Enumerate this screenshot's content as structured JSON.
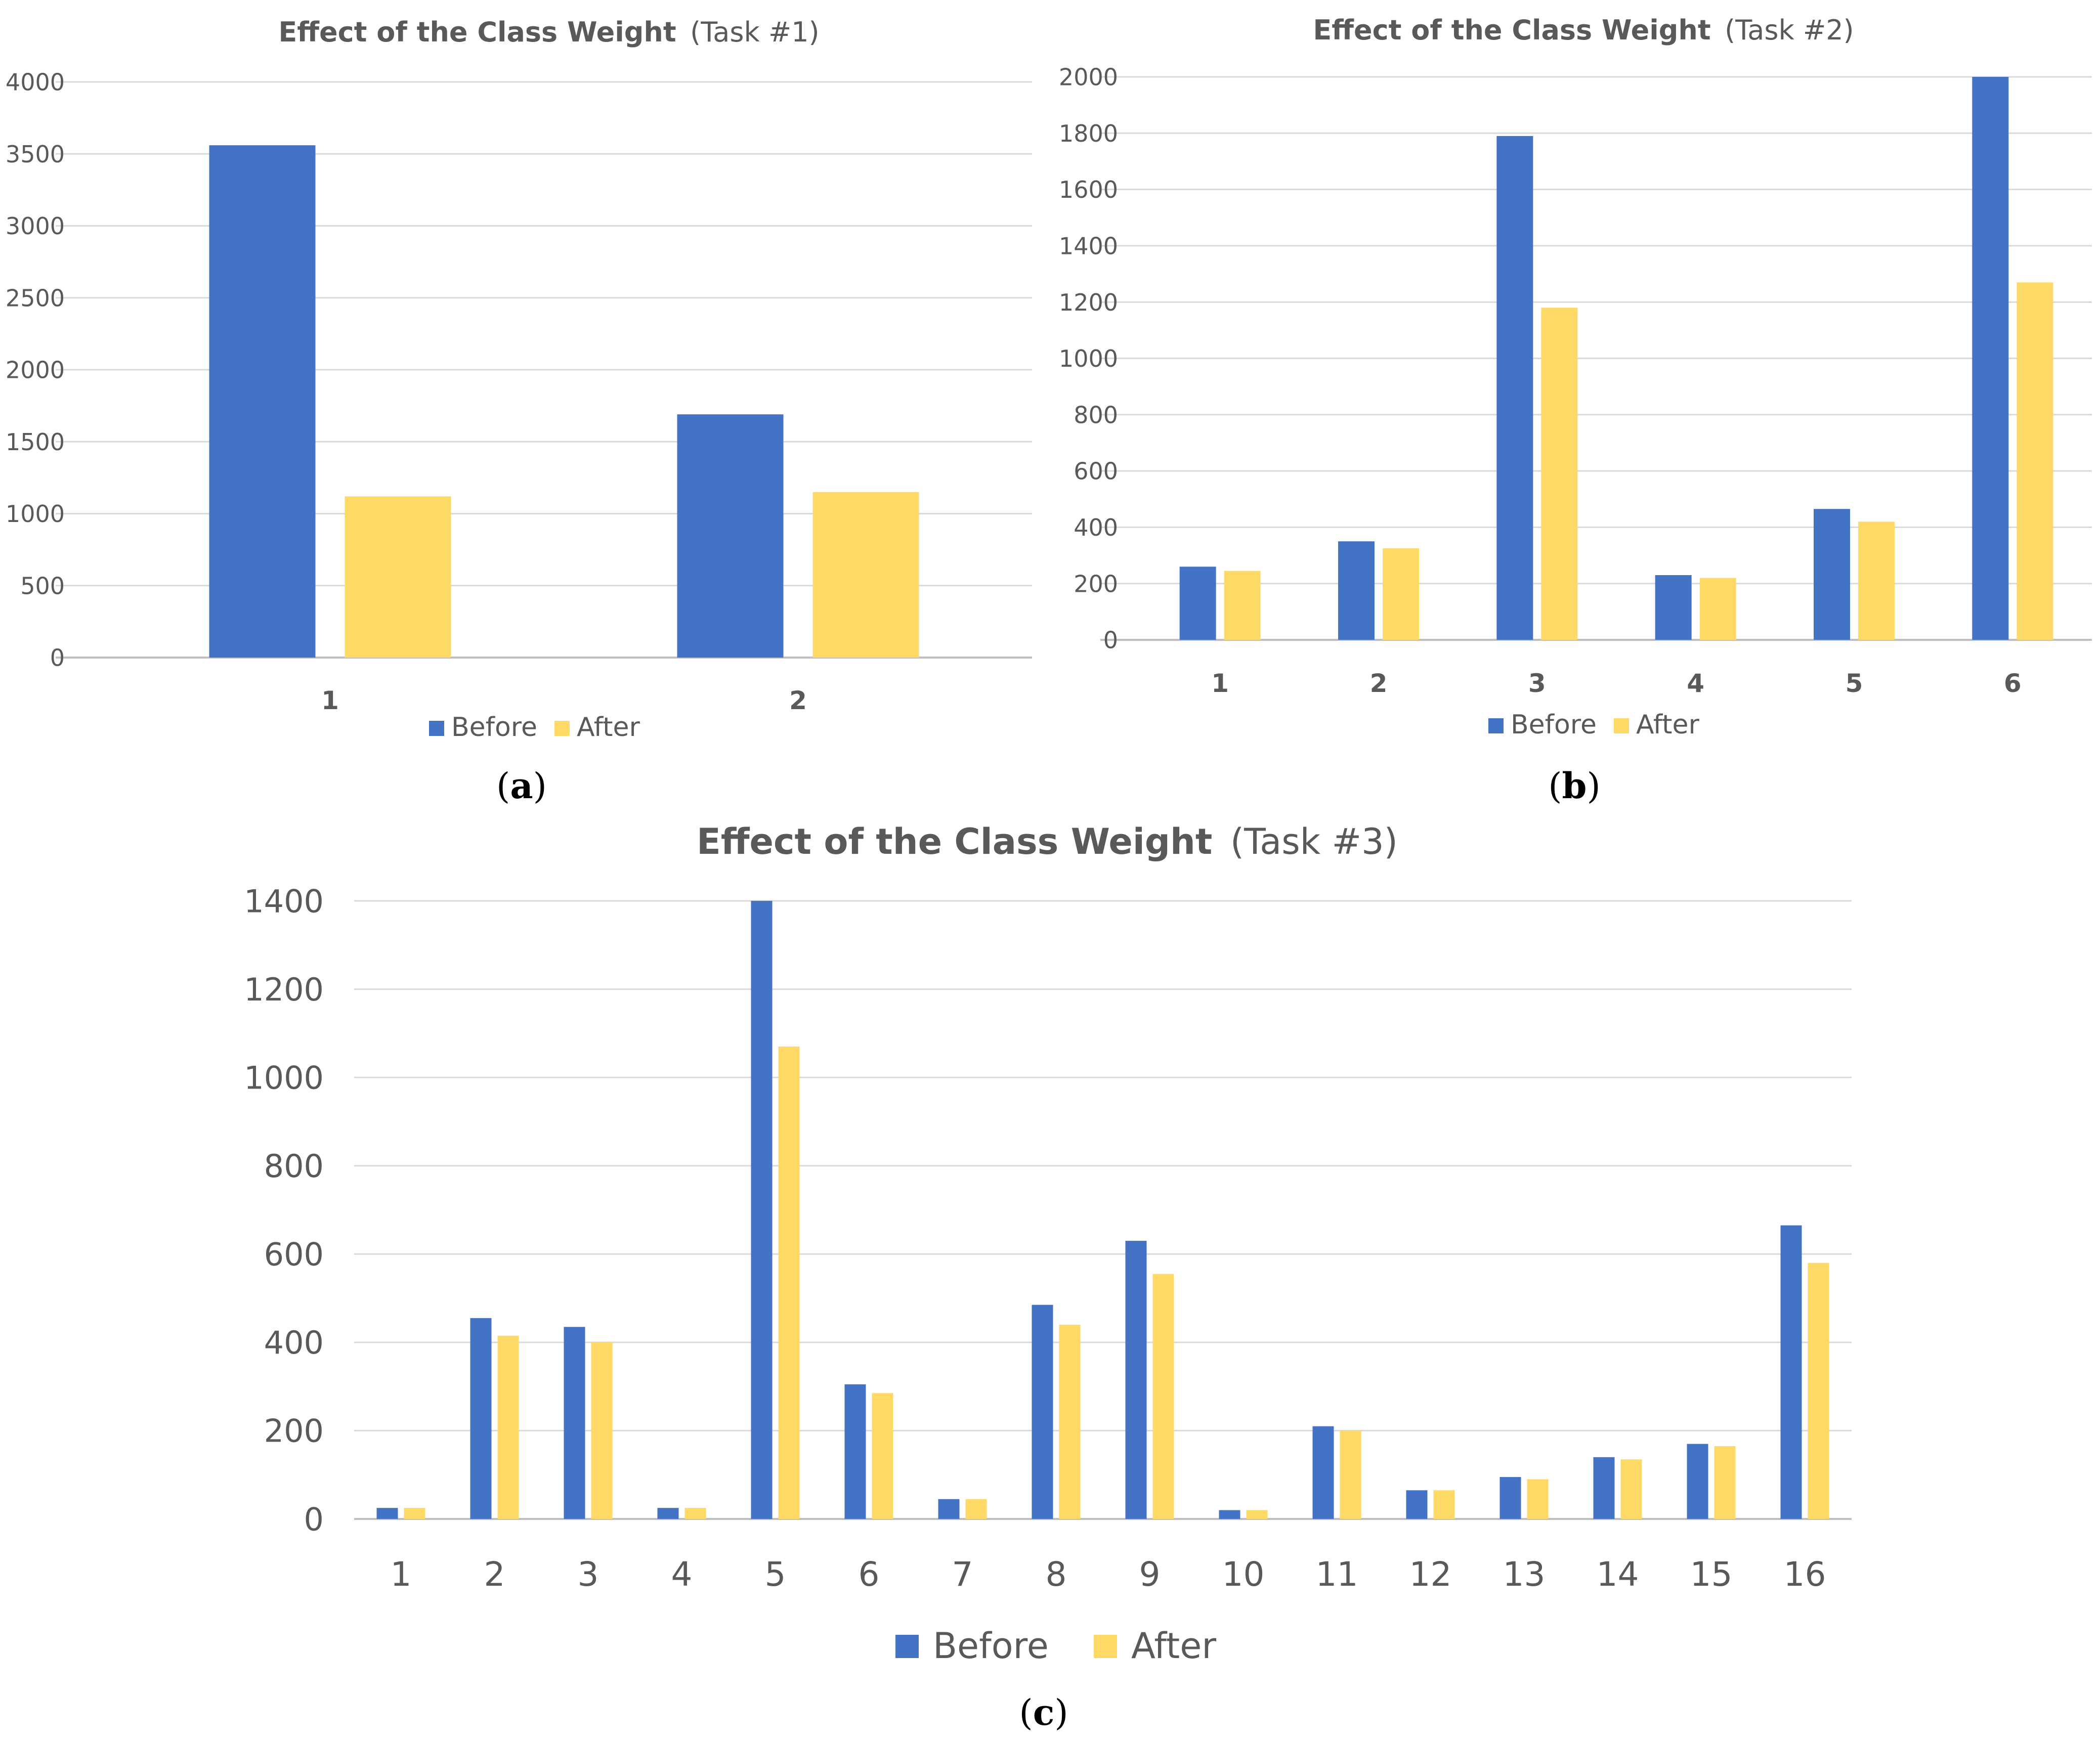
{
  "colors": {
    "before": "#4472C4",
    "after": "#FFD966",
    "grid": "#D9D9D9",
    "text": "#595959"
  },
  "chart_data": [
    {
      "id": "a",
      "type": "bar",
      "title_bold": "Effect of the Class Weight",
      "title_rest": "(Task #1)",
      "panel_label": "a",
      "categories": [
        "1",
        "2"
      ],
      "series": [
        {
          "name": "Before",
          "values": [
            3560,
            1690
          ]
        },
        {
          "name": "After",
          "values": [
            1120,
            1150
          ]
        }
      ],
      "yticks": [
        "0",
        "500",
        "1000",
        "1500",
        "2000",
        "2500",
        "3000",
        "3500",
        "4000"
      ],
      "ylim": [
        0,
        4000
      ],
      "legend": "bottom"
    },
    {
      "id": "b",
      "type": "bar",
      "title_bold": "Effect of the Class Weight",
      "title_rest": "(Task #2)",
      "panel_label": "b",
      "categories": [
        "1",
        "2",
        "3",
        "4",
        "5",
        "6"
      ],
      "series": [
        {
          "name": "Before",
          "values": [
            260,
            350,
            1790,
            230,
            465,
            2000
          ]
        },
        {
          "name": "After",
          "values": [
            245,
            325,
            1180,
            220,
            420,
            1270
          ]
        }
      ],
      "yticks": [
        "0",
        "200",
        "400",
        "600",
        "800",
        "1000",
        "1200",
        "1400",
        "1600",
        "1800",
        "2000"
      ],
      "ylim": [
        0,
        2000
      ],
      "legend": "bottom"
    },
    {
      "id": "c",
      "type": "bar",
      "title_bold": "Effect of the Class Weight",
      "title_rest": "(Task #3)",
      "panel_label": "c",
      "categories": [
        "1",
        "2",
        "3",
        "4",
        "5",
        "6",
        "7",
        "8",
        "9",
        "10",
        "11",
        "12",
        "13",
        "14",
        "15",
        "16"
      ],
      "series": [
        {
          "name": "Before",
          "values": [
            25,
            455,
            435,
            25,
            1400,
            305,
            45,
            485,
            630,
            20,
            210,
            65,
            95,
            140,
            170,
            665
          ]
        },
        {
          "name": "After",
          "values": [
            25,
            415,
            400,
            25,
            1070,
            285,
            45,
            440,
            555,
            20,
            200,
            65,
            90,
            135,
            165,
            580
          ]
        }
      ],
      "yticks": [
        "0",
        "200",
        "400",
        "600",
        "800",
        "1000",
        "1200",
        "1400"
      ],
      "ylim": [
        0,
        1400
      ],
      "legend": "bottom"
    }
  ]
}
